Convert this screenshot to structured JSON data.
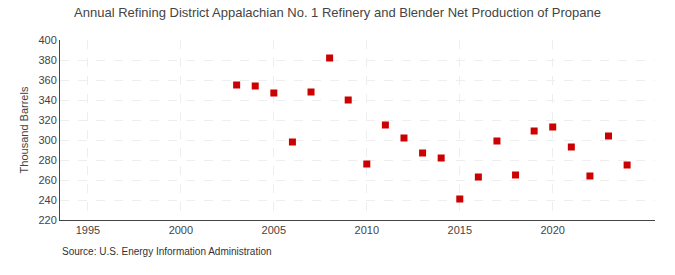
{
  "chart_data": {
    "type": "scatter",
    "title": "Annual Refining District Appalachian No. 1 Refinery and Blender Net Production of Propane",
    "ylabel": "Thousand Barrels",
    "annotations": [
      "Source: U.S. Energy Information Administration"
    ],
    "x": [
      2003,
      2004,
      2005,
      2006,
      2007,
      2008,
      2009,
      2010,
      2011,
      2012,
      2013,
      2014,
      2015,
      2016,
      2017,
      2018,
      2019,
      2020,
      2021,
      2022,
      2023,
      2024
    ],
    "values": [
      355,
      354,
      347,
      298,
      348,
      382,
      340,
      276,
      315,
      302,
      287,
      282,
      241,
      263,
      299,
      265,
      309,
      313,
      293,
      264,
      304,
      275
    ],
    "color": "#cc0000",
    "marker": "square",
    "xlim": [
      1993.5,
      2025.5
    ],
    "xticks": [
      1995,
      2000,
      2005,
      2010,
      2015,
      2020
    ],
    "ylim": [
      220,
      400
    ],
    "yticks": [
      220,
      240,
      260,
      280,
      300,
      320,
      340,
      360,
      380,
      400
    ],
    "grid": true
  }
}
